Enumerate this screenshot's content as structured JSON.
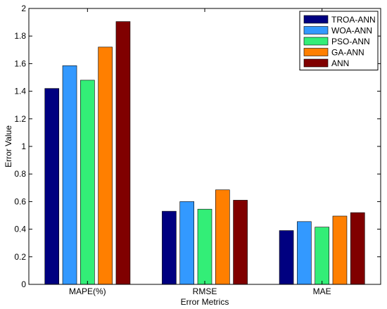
{
  "chart_data": {
    "type": "bar",
    "title": "",
    "xlabel": "Error Metrics",
    "ylabel": "Error Value",
    "ylim": [
      0,
      2
    ],
    "yticks": [
      0,
      0.2,
      0.4,
      0.6,
      0.8,
      1,
      1.2,
      1.4,
      1.6,
      1.8,
      2
    ],
    "ytick_labels": [
      "0",
      "0.2",
      "0.4",
      "0.6",
      "0.8",
      "1",
      "1.2",
      "1.4",
      "1.6",
      "1.8",
      "2"
    ],
    "grid": false,
    "legend_position": "top-right",
    "categories": [
      "MAPE(%)",
      "RMSE",
      "MAE"
    ],
    "series": [
      {
        "name": "TROA-ANN",
        "color": "#000080",
        "values": [
          1.42,
          0.53,
          0.39
        ]
      },
      {
        "name": "WOA-ANN",
        "color": "#3399ff",
        "values": [
          1.585,
          0.6,
          0.455
        ]
      },
      {
        "name": "PSO-ANN",
        "color": "#33ee77",
        "values": [
          1.48,
          0.545,
          0.415
        ]
      },
      {
        "name": "GA-ANN",
        "color": "#ff7f00",
        "values": [
          1.72,
          0.685,
          0.495
        ]
      },
      {
        "name": "ANN",
        "color": "#800000",
        "values": [
          1.905,
          0.61,
          0.52
        ]
      }
    ]
  }
}
